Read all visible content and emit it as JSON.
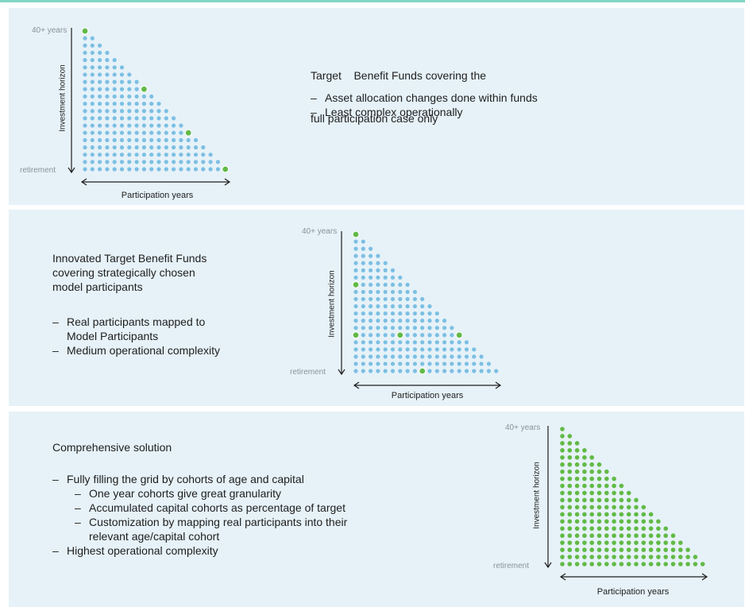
{
  "colors": {
    "blue_dot": "#7cbfe3",
    "green_dot": "#62ba46",
    "panel_bg": "#e6f2f8",
    "accent": "#7fd6c2"
  },
  "panel1": {
    "title_lines": [
      "Target    Benefit Funds covering the",
      "full participation case only"
    ],
    "bullets": [
      "Asset allocation changes done within funds",
      "Least complex operationally"
    ],
    "grid": {
      "label_top": "40+ years",
      "label_bottom": "retirement",
      "y_axis": "Investment horizon",
      "x_axis": "Participation years"
    }
  },
  "panel2": {
    "title_lines": [
      "Innovated Target Benefit Funds",
      "covering strategically chosen",
      "model participants"
    ],
    "bullets": [
      "Real participants mapped to\nModel Participants",
      "Medium operational complexity"
    ],
    "grid": {
      "label_top": "40+ years",
      "label_bottom": "retirement",
      "y_axis": "Investment horizon",
      "x_axis": "Participation years"
    }
  },
  "panel3": {
    "title": "Comprehensive solution",
    "bullet_1": "Fully filling the grid by cohorts of age and capital",
    "sub_bullets": [
      "One year cohorts give great granularity",
      "Accumulated capital cohorts as percentage of target",
      "Customization by mapping real participants into their relevant age/capital cohort"
    ],
    "bullet_2": "Highest operational complexity",
    "grid": {
      "label_top": "40+ years",
      "label_bottom": "retirement",
      "y_axis": "Investment horizon",
      "x_axis": "Participation years"
    }
  }
}
